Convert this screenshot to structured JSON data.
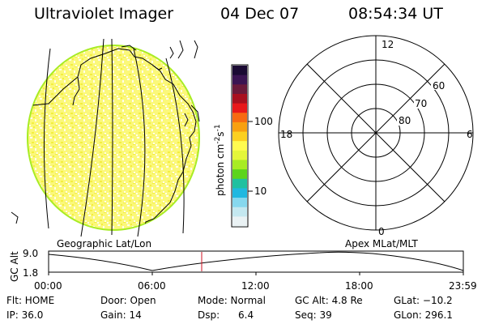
{
  "header": {
    "instrument": "Ultraviolet Imager",
    "date": "04 Dec 07",
    "time": "08:54:34 UT"
  },
  "colorbar": {
    "unit_main": "photon cm",
    "unit_sup1": "-2",
    "unit_mid": "s",
    "unit_sup2": "-1",
    "ticks": [
      "100",
      "10"
    ],
    "colors": [
      "#1a0a33",
      "#3a1452",
      "#6a1a3a",
      "#a8101e",
      "#e8181a",
      "#f76a12",
      "#f8a010",
      "#fcd020",
      "#fffb50",
      "#e4f63a",
      "#a8ec24",
      "#5cd41c",
      "#20c0a0",
      "#20b8e0",
      "#86d8ee",
      "#c4e8f0",
      "#eaf2f4"
    ]
  },
  "polar_plot": {
    "lat_labels": [
      "80",
      "70",
      "60"
    ],
    "mlt_labels": {
      "top": "12",
      "bottom": "0",
      "left": "18",
      "right": "6"
    }
  },
  "captions": {
    "left": "Geographic Lat/Lon",
    "right": "Apex MLat/MLT"
  },
  "altitude_plot": {
    "axis_label": "GC Alt",
    "y_ticks": [
      "9.0",
      "1.8"
    ],
    "x_ticks": [
      "00:00",
      "06:00",
      "12:00",
      "18:00",
      "23:59"
    ],
    "current_time_marker": "08:54:34"
  },
  "status": {
    "flt": "Flt: HOME",
    "ip": "IP: 36.0",
    "door": "Door: Open",
    "gain": "Gain: 14",
    "mode": "Mode: Normal",
    "dsp": "Dsp:      6.4",
    "gc_alt": "GC Alt: 4.8 Re",
    "seq": "Seq: 39",
    "glat": "GLat: −10.2",
    "glon": "GLon: 296.1"
  }
}
